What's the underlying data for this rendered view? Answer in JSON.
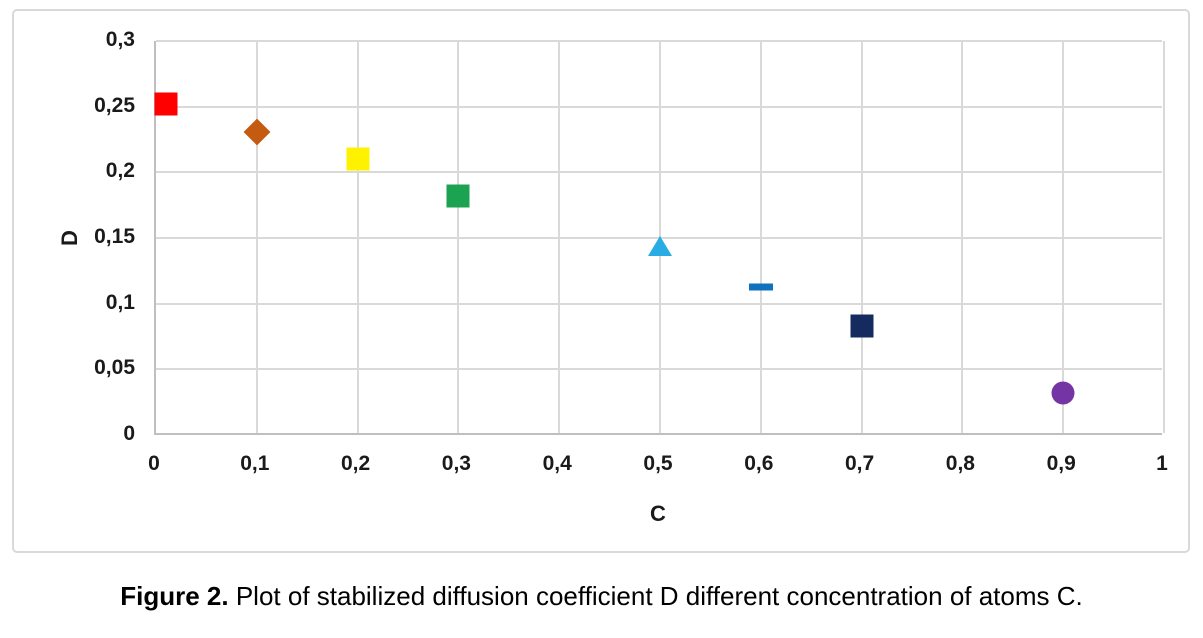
{
  "figure_caption": {
    "label": "Figure 2.",
    "text": "Plot of stabilized diffusion coefficient D different concentration of atoms C."
  },
  "chart_data": {
    "type": "scatter",
    "title": "",
    "xlabel": "C",
    "ylabel": "D",
    "xlim": [
      0,
      1
    ],
    "ylim": [
      0,
      0.3
    ],
    "grid": true,
    "legend": "none",
    "decimal_separator": ",",
    "colors": {
      "gridline": "#d9d9d9",
      "axis_line": "#bfbfbf",
      "tick_text": "#1a1a1a",
      "frame_border": "#d9d9d9"
    },
    "x_ticks": [
      {
        "value": 0,
        "label": "0"
      },
      {
        "value": 0.1,
        "label": "0,1"
      },
      {
        "value": 0.2,
        "label": "0,2"
      },
      {
        "value": 0.3,
        "label": "0,3"
      },
      {
        "value": 0.4,
        "label": "0,4"
      },
      {
        "value": 0.5,
        "label": "0,5"
      },
      {
        "value": 0.6,
        "label": "0,6"
      },
      {
        "value": 0.7,
        "label": "0,7"
      },
      {
        "value": 0.8,
        "label": "0,8"
      },
      {
        "value": 0.9,
        "label": "0,9"
      },
      {
        "value": 1,
        "label": "1"
      }
    ],
    "y_ticks": [
      {
        "value": 0,
        "label": "0"
      },
      {
        "value": 0.05,
        "label": "0,05"
      },
      {
        "value": 0.1,
        "label": "0,1"
      },
      {
        "value": 0.15,
        "label": "0,15"
      },
      {
        "value": 0.2,
        "label": "0,2"
      },
      {
        "value": 0.25,
        "label": "0,25"
      },
      {
        "value": 0.3,
        "label": "0,3"
      }
    ],
    "points": [
      {
        "x": 0.01,
        "y": 0.252,
        "marker": "square",
        "color": "#fe0000"
      },
      {
        "x": 0.1,
        "y": 0.231,
        "marker": "diamond",
        "color": "#c55a11"
      },
      {
        "x": 0.2,
        "y": 0.21,
        "marker": "square",
        "color": "#fef200"
      },
      {
        "x": 0.3,
        "y": 0.182,
        "marker": "square",
        "color": "#1ca351"
      },
      {
        "x": 0.5,
        "y": 0.144,
        "marker": "triangle-up",
        "color": "#29abe3"
      },
      {
        "x": 0.6,
        "y": 0.113,
        "marker": "dash",
        "color": "#1071bc"
      },
      {
        "x": 0.7,
        "y": 0.083,
        "marker": "square",
        "color": "#152a5f"
      },
      {
        "x": 0.9,
        "y": 0.032,
        "marker": "circle",
        "color": "#7434a4"
      }
    ]
  }
}
